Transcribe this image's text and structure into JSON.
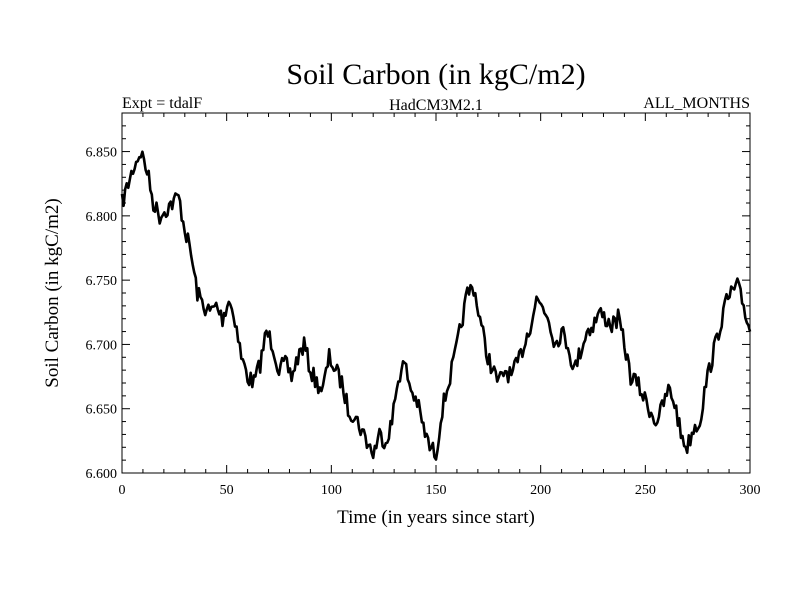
{
  "chart_data": {
    "type": "line",
    "title": "Soil Carbon (in kgC/m2)",
    "subtitle_left": "Expt = tdalF",
    "subtitle_center": "HadCM3M2.1",
    "subtitle_right": "ALL_MONTHS",
    "xlabel": "Time (in years since start)",
    "ylabel": "Soil Carbon (in kgC/m2)",
    "xlim": [
      0,
      300
    ],
    "ylim": [
      6.6,
      6.88
    ],
    "xticks": [
      0,
      50,
      100,
      150,
      200,
      250,
      300
    ],
    "xtick_labels": [
      "0",
      "50",
      "100",
      "150",
      "200",
      "250",
      "300"
    ],
    "yticks": [
      6.6,
      6.65,
      6.7,
      6.75,
      6.8,
      6.85
    ],
    "ytick_labels": [
      "6.600",
      "6.650",
      "6.700",
      "6.750",
      "6.800",
      "6.850"
    ],
    "line_color": "#000000",
    "series": [
      {
        "name": "Soil Carbon",
        "x": [
          0,
          3,
          6,
          9,
          12,
          15,
          18,
          21,
          24,
          27,
          30,
          33,
          36,
          39,
          42,
          45,
          48,
          51,
          54,
          57,
          60,
          63,
          66,
          69,
          72,
          75,
          78,
          81,
          84,
          87,
          90,
          93,
          96,
          99,
          102,
          105,
          108,
          111,
          114,
          117,
          120,
          123,
          126,
          129,
          132,
          135,
          138,
          141,
          144,
          147,
          150,
          153,
          156,
          159,
          162,
          165,
          168,
          171,
          174,
          177,
          180,
          183,
          186,
          189,
          192,
          195,
          198,
          201,
          204,
          207,
          210,
          213,
          216,
          219,
          222,
          225,
          228,
          231,
          234,
          237,
          240,
          243,
          246,
          249,
          252,
          255,
          258,
          261,
          264,
          267,
          270,
          273,
          276,
          279,
          282,
          285,
          288,
          291,
          294,
          297,
          300
        ],
        "values": [
          6.81,
          6.825,
          6.84,
          6.85,
          6.835,
          6.81,
          6.8,
          6.805,
          6.81,
          6.815,
          6.79,
          6.77,
          6.74,
          6.73,
          6.725,
          6.73,
          6.72,
          6.735,
          6.72,
          6.69,
          6.675,
          6.67,
          6.685,
          6.71,
          6.7,
          6.68,
          6.685,
          6.675,
          6.69,
          6.7,
          6.68,
          6.67,
          6.665,
          6.69,
          6.68,
          6.67,
          6.65,
          6.645,
          6.635,
          6.625,
          6.615,
          6.63,
          6.625,
          6.64,
          6.675,
          6.685,
          6.665,
          6.655,
          6.635,
          6.62,
          6.615,
          6.65,
          6.67,
          6.69,
          6.715,
          6.74,
          6.745,
          6.72,
          6.695,
          6.68,
          6.67,
          6.68,
          6.675,
          6.685,
          6.7,
          6.715,
          6.735,
          6.73,
          6.72,
          6.7,
          6.71,
          6.7,
          6.68,
          6.695,
          6.71,
          6.715,
          6.725,
          6.72,
          6.715,
          6.72,
          6.7,
          6.675,
          6.67,
          6.66,
          6.65,
          6.64,
          6.65,
          6.665,
          6.655,
          6.63,
          6.62,
          6.635,
          6.64,
          6.67,
          6.69,
          6.71,
          6.73,
          6.74,
          6.745,
          6.73,
          6.71
        ]
      }
    ]
  }
}
